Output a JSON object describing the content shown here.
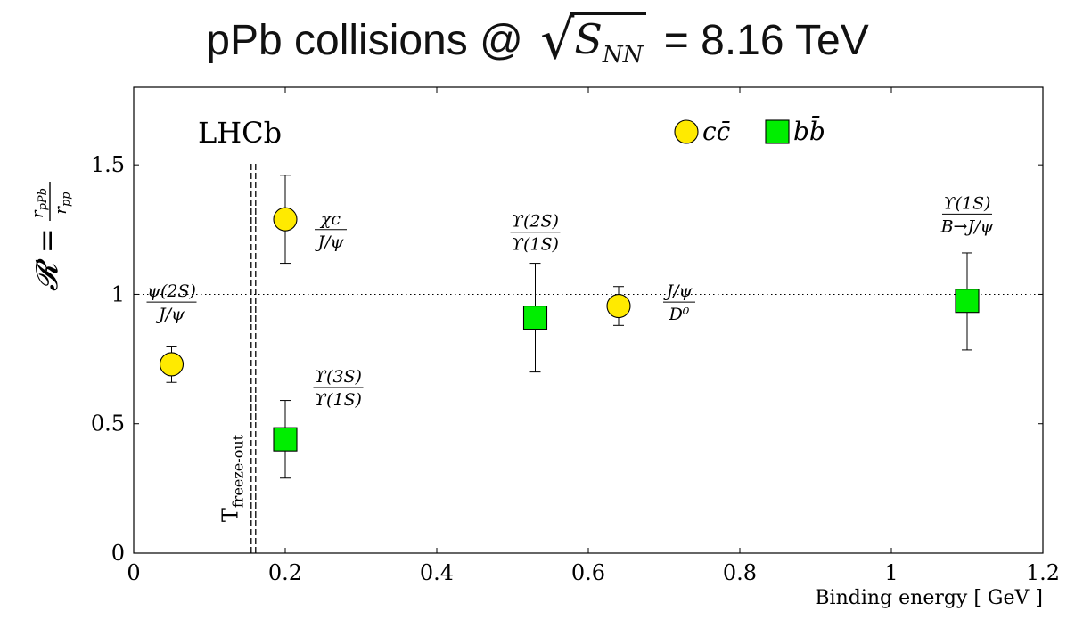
{
  "slide_title": {
    "prefix": "pPb collisions @",
    "sqrt_var": "S",
    "sqrt_sub": "NN",
    "suffix": "= 8.16 TeV"
  },
  "chart_data": {
    "type": "scatter",
    "title": "",
    "xlabel": "Binding energy [ GeV ]",
    "ylabel": "R = r_pPb / r_pp",
    "xlim": [
      0,
      1.2
    ],
    "ylim": [
      0,
      1.8
    ],
    "xticks": [
      0,
      0.2,
      0.4,
      0.6,
      0.8,
      1,
      1.2
    ],
    "yticks": [
      0,
      0.5,
      1,
      1.5
    ],
    "xtick_labels": [
      "0",
      "0.2",
      "0.4",
      "0.6",
      "0.8",
      "1",
      "1.2"
    ],
    "ytick_labels": [
      "0",
      "0.5",
      "1",
      "1.5"
    ],
    "experiment_label": "LHCb",
    "reference_line": {
      "y": 1,
      "style": "dotted"
    },
    "freeze_out_line": {
      "x": 0.158,
      "style": "double-dashed",
      "label": "T_freeze-out"
    },
    "legend": {
      "placement": "top-center",
      "entries": [
        {
          "name": "cc̄",
          "marker": "circle",
          "color": "#ffea00"
        },
        {
          "name": "bb̄",
          "marker": "square",
          "color": "#00ee00"
        }
      ]
    },
    "series": [
      {
        "name": "cc̄",
        "marker": "circle",
        "color": "#ffea00",
        "points": [
          {
            "x": 0.05,
            "y": 0.73,
            "yerr_low": 0.66,
            "yerr_high": 0.8,
            "label_num": "ψ(2S)",
            "label_den": "J/ψ"
          },
          {
            "x": 0.2,
            "y": 1.29,
            "yerr_low": 1.12,
            "yerr_high": 1.46,
            "label_num": "χc",
            "label_den": "J/ψ"
          },
          {
            "x": 0.64,
            "y": 0.955,
            "yerr_low": 0.88,
            "yerr_high": 1.03,
            "label_num": "J/ψ",
            "label_den": "D⁰"
          }
        ]
      },
      {
        "name": "bb̄",
        "marker": "square",
        "color": "#00ee00",
        "points": [
          {
            "x": 0.2,
            "y": 0.44,
            "yerr_low": 0.29,
            "yerr_high": 0.59,
            "label_num": "ϒ(3S)",
            "label_den": "ϒ(1S)"
          },
          {
            "x": 0.53,
            "y": 0.91,
            "yerr_low": 0.7,
            "yerr_high": 1.12,
            "label_num": "ϒ(2S)",
            "label_den": "ϒ(1S)"
          },
          {
            "x": 1.1,
            "y": 0.975,
            "yerr_low": 0.785,
            "yerr_high": 1.16,
            "label_num": "ϒ(1S)",
            "label_den": "B→J/ψ"
          }
        ]
      }
    ]
  }
}
